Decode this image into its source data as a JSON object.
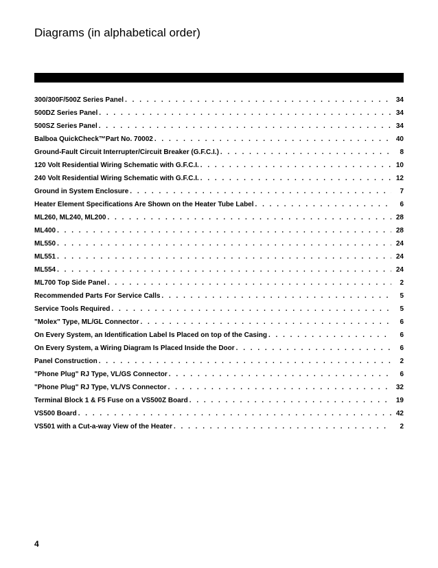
{
  "title": "Diagrams (in alphabetical order)",
  "page_number": "4",
  "colors": {
    "text": "#000000",
    "background": "#ffffff",
    "bar": "#000000"
  },
  "typography": {
    "title_fontsize": 17,
    "entry_fontsize": 10,
    "entry_fontweight": "bold",
    "pagenum_fontsize": 12
  },
  "entries": [
    {
      "label": "300/300F/500Z Series Panel",
      "page": "34"
    },
    {
      "label": "500DZ Series Panel",
      "page": "34"
    },
    {
      "label": "500SZ Series Panel",
      "page": "34"
    },
    {
      "label": "Balboa QuickCheck™Part No. 70002",
      "page": "40"
    },
    {
      "label": "Ground-Fault Circuit Interrupter/Circuit Breaker (G.F.C.I.)",
      "page": "8"
    },
    {
      "label": "120 Volt Residential Wiring Schematic with G.F.C.I.",
      "page": "10"
    },
    {
      "label": "240 Volt Residential Wiring Schematic with G.F.C.I.",
      "page": "12"
    },
    {
      "label": "Ground in System Enclosure",
      "page": "7"
    },
    {
      "label": "Heater Element Specifications Are Shown on the Heater Tube Label",
      "page": "6"
    },
    {
      "label": "ML260, ML240, ML200",
      "page": "28"
    },
    {
      "label": "ML400",
      "page": "28"
    },
    {
      "label": "ML550",
      "page": "24"
    },
    {
      "label": "ML551",
      "page": "24"
    },
    {
      "label": "ML554",
      "page": "24"
    },
    {
      "label": "ML700 Top Side Panel",
      "page": "2"
    },
    {
      "label": "Recommended Parts For Service Calls",
      "page": "5"
    },
    {
      "label": "Service Tools Required",
      "page": "5"
    },
    {
      "label": "\"Molex\" Type,  ML/GL Connector",
      "page": "6"
    },
    {
      "label": "On Every System, an Identification Label Is Placed on top of the Casing",
      "page": "6"
    },
    {
      "label": "On Every System, a Wiring Diagram  Is Placed Inside the Door",
      "page": "6"
    },
    {
      "label": "Panel Construction",
      "page": "2"
    },
    {
      "label": "\"Phone Plug\" RJ Type, VL/GS Connector",
      "page": "6"
    },
    {
      "label": "\"Phone Plug\" RJ Type,  VL/VS Connector",
      "page": "32"
    },
    {
      "label": "Terminal Block 1 & F5 Fuse on a VS500Z Board",
      "page": "19"
    },
    {
      "label": "VS500 Board",
      "page": "42"
    },
    {
      "label": "VS501 with a Cut-a-way View of the Heater",
      "page": "2"
    }
  ]
}
